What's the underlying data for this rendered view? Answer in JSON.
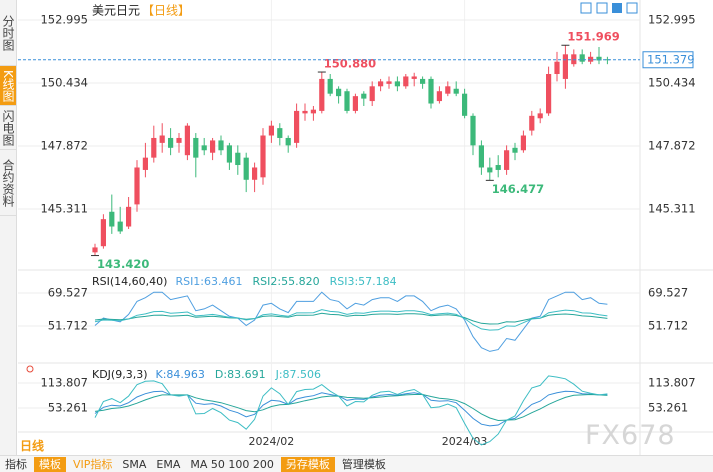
{
  "sidebar": [
    "分时图",
    "K线图",
    "闪电图",
    "合约资料"
  ],
  "period_label": "日线",
  "toolbar": [
    "指标",
    "模板",
    "VIP指标",
    "SMA",
    "EMA",
    "MA 50 100 200",
    "另存模板",
    "管理模板"
  ],
  "watermark": "FX678",
  "chart_data": [
    {
      "type": "candlestick",
      "title": "美元日元",
      "subtitle": "【日线】",
      "categories": [
        null,
        null,
        null,
        null,
        null,
        null,
        null,
        null,
        null,
        null,
        null,
        null,
        null,
        null,
        null,
        null,
        null,
        null,
        null,
        null,
        null,
        "2024/02",
        null,
        null,
        null,
        null,
        null,
        null,
        null,
        null,
        null,
        null,
        null,
        null,
        null,
        null,
        null,
        null,
        null,
        null,
        null,
        null,
        null,
        null,
        "2024/03",
        null,
        null,
        null,
        null,
        null,
        null,
        null,
        null,
        null,
        null,
        null,
        null,
        null,
        null,
        null,
        null,
        null
      ],
      "open": [
        143.55,
        143.8,
        145.2,
        144.8,
        144.6,
        145.5,
        146.9,
        147.4,
        148.0,
        148.2,
        148.0,
        147.5,
        148.2,
        147.9,
        147.6,
        148.1,
        147.9,
        147.6,
        147.4,
        146.5,
        146.6,
        148.3,
        148.6,
        148.2,
        148.0,
        149.2,
        149.2,
        149.3,
        150.6,
        150.2,
        150.1,
        149.3,
        150.0,
        149.7,
        150.3,
        150.4,
        150.5,
        150.3,
        150.6,
        150.6,
        150.6,
        149.7,
        150.0,
        150.2,
        150.0,
        149.1,
        147.9,
        147.0,
        147.1,
        146.9,
        147.8,
        147.7,
        148.5,
        149.0,
        149.2,
        150.8,
        150.6,
        151.2,
        151.6,
        151.3,
        151.5,
        151.4
      ],
      "high": [
        143.9,
        145.1,
        145.9,
        145.4,
        145.8,
        147.3,
        148.0,
        148.7,
        148.8,
        148.6,
        148.4,
        148.8,
        148.4,
        148.2,
        148.2,
        148.3,
        148.0,
        147.9,
        147.6,
        147.2,
        148.6,
        148.9,
        148.8,
        148.3,
        149.6,
        149.6,
        149.5,
        150.88,
        150.8,
        150.3,
        150.2,
        150.0,
        150.1,
        150.5,
        150.6,
        150.7,
        150.7,
        150.8,
        150.85,
        150.7,
        150.7,
        150.3,
        150.5,
        150.5,
        150.2,
        149.2,
        148.1,
        147.4,
        147.5,
        147.9,
        148.0,
        148.5,
        149.3,
        149.4,
        151.1,
        151.7,
        151.969,
        151.8,
        151.8,
        151.7,
        151.9,
        151.5
      ],
      "low": [
        143.42,
        143.7,
        144.3,
        144.3,
        144.5,
        145.2,
        146.6,
        147.2,
        147.6,
        147.5,
        147.6,
        147.3,
        146.6,
        147.5,
        147.3,
        147.5,
        146.9,
        146.7,
        146.0,
        146.0,
        146.3,
        148.0,
        147.9,
        147.6,
        147.8,
        148.9,
        148.9,
        149.2,
        149.9,
        149.6,
        149.2,
        149.2,
        149.5,
        149.5,
        150.1,
        150.2,
        150.1,
        150.2,
        150.3,
        150.2,
        149.4,
        149.6,
        149.9,
        149.9,
        149.0,
        147.5,
        146.7,
        146.477,
        146.6,
        146.7,
        147.3,
        147.6,
        148.3,
        148.8,
        149.1,
        150.5,
        150.2,
        151.1,
        151.2,
        151.2,
        151.2,
        151.2
      ],
      "close": [
        143.75,
        144.9,
        144.6,
        144.4,
        145.4,
        147.0,
        147.4,
        148.2,
        148.3,
        147.8,
        148.2,
        148.7,
        147.4,
        147.7,
        148.1,
        147.7,
        147.2,
        147.1,
        146.5,
        147.0,
        148.3,
        148.7,
        148.2,
        147.9,
        149.3,
        149.3,
        149.35,
        150.6,
        150.0,
        149.9,
        149.3,
        149.9,
        149.8,
        150.3,
        150.5,
        150.5,
        150.3,
        150.7,
        150.7,
        150.4,
        149.6,
        150.1,
        150.3,
        150.0,
        149.1,
        147.9,
        147.0,
        146.8,
        146.9,
        147.7,
        147.6,
        148.3,
        149.1,
        149.2,
        150.8,
        151.3,
        151.6,
        151.6,
        151.3,
        151.5,
        151.35,
        151.379
      ],
      "up_color": "#ef4f5f",
      "down_color": "#3cb97a",
      "ylim": [
        142.914,
        153.605
      ],
      "yticks": [
        152.995,
        150.434,
        147.872,
        145.311
      ],
      "grid": true,
      "annotations": [
        {
          "value": 150.88,
          "label": "150.880"
        },
        {
          "value": 151.969,
          "label": "151.969"
        },
        {
          "value": 146.477,
          "label": "146.477"
        },
        {
          "value": 143.42,
          "label": "143.420"
        }
      ]
    },
    {
      "type": "line",
      "title": "RSI(14,60,40)",
      "series": [
        {
          "name": "RSI1:63.461",
          "color": "#4f9fe0",
          "values": [
            52,
            56,
            55,
            54,
            58,
            65,
            67,
            70,
            70,
            66,
            67,
            68,
            60,
            61,
            63,
            60,
            57,
            56,
            52,
            55,
            63,
            64,
            61,
            59,
            65,
            65,
            65,
            70,
            66,
            65,
            61,
            64,
            63,
            66,
            67,
            67,
            65,
            68,
            68,
            65,
            60,
            62,
            63,
            61,
            55,
            46,
            40,
            38,
            39,
            45,
            44,
            50,
            56,
            57,
            66,
            68,
            70,
            70,
            66,
            67,
            64,
            63.461
          ]
        },
        {
          "name": "RSI2:55.820",
          "color": "#26a69a",
          "values": [
            55,
            55.5,
            55.3,
            55.1,
            55.6,
            56.5,
            56.9,
            57.5,
            57.6,
            57.1,
            57.3,
            57.5,
            56.5,
            56.7,
            57,
            56.6,
            56.1,
            56,
            55.4,
            55.8,
            56.9,
            57.2,
            56.8,
            56.5,
            57.5,
            57.5,
            57.6,
            58.6,
            58,
            57.8,
            57,
            57.5,
            57.4,
            58,
            58.2,
            58.2,
            58,
            58.4,
            58.4,
            58.1,
            57.3,
            57.6,
            57.8,
            57.4,
            56.3,
            54.5,
            53.2,
            52.8,
            52.9,
            54,
            53.9,
            54.8,
            55.8,
            56,
            57.5,
            58,
            58.2,
            57.9,
            57.2,
            56.9,
            56.4,
            55.82
          ]
        },
        {
          "name": "RSI3:57.184",
          "color": "#3dbdc4",
          "values": [
            54,
            55,
            54.8,
            54.6,
            55.5,
            57.5,
            58.3,
            59.5,
            59.6,
            58.6,
            58.9,
            59.3,
            57.2,
            57.5,
            58,
            57.3,
            56.4,
            56.1,
            55,
            55.7,
            57.8,
            58.3,
            57.5,
            57,
            58.8,
            58.8,
            58.9,
            60.6,
            59.6,
            59.3,
            58,
            58.8,
            58.6,
            59.4,
            59.8,
            59.8,
            59.4,
            60,
            60,
            59.3,
            57.9,
            58.4,
            58.7,
            58,
            55.8,
            52.5,
            50.2,
            49.5,
            49.7,
            51.8,
            51.6,
            53.5,
            55.5,
            55.9,
            58.9,
            59.6,
            60.3,
            60,
            58.8,
            58.7,
            57.8,
            57.184
          ]
        }
      ],
      "ylim": [
        32.3,
        80.9
      ],
      "yticks": [
        69.527,
        51.712
      ]
    },
    {
      "type": "line",
      "title": "KDJ(9,3,3)",
      "series": [
        {
          "name": "K:84.963",
          "color": "#3a8fd9",
          "values": [
            40,
            55,
            60,
            58,
            66,
            80,
            88,
            93,
            94,
            85,
            84,
            85,
            65,
            62,
            64,
            58,
            48,
            42,
            32,
            38,
            60,
            72,
            70,
            62,
            75,
            80,
            83,
            90,
            86,
            82,
            72,
            75,
            74,
            80,
            84,
            86,
            84,
            88,
            90,
            86,
            72,
            70,
            71,
            66,
            48,
            28,
            14,
            10,
            12,
            24,
            28,
            45,
            62,
            70,
            85,
            90,
            94,
            93,
            88,
            87,
            85,
            84.963
          ]
        },
        {
          "name": "D:83.691",
          "color": "#26a69a",
          "values": [
            45,
            48,
            52,
            54,
            58,
            65,
            73,
            80,
            85,
            85,
            85,
            85,
            78,
            73,
            70,
            66,
            60,
            54,
            47,
            44,
            49,
            57,
            61,
            62,
            66,
            71,
            75,
            80,
            82,
            82,
            79,
            78,
            77,
            78,
            80,
            82,
            83,
            85,
            86,
            86,
            81,
            77,
            75,
            72,
            64,
            52,
            39,
            29,
            23,
            24,
            25,
            32,
            42,
            51,
            62,
            71,
            79,
            84,
            85,
            86,
            85,
            83.691
          ]
        },
        {
          "name": "J:87.506",
          "color": "#3dbdc4",
          "values": [
            30,
            69,
            76,
            66,
            82,
            110,
            118,
            119,
            112,
            85,
            82,
            85,
            39,
            40,
            52,
            42,
            24,
            18,
            2,
            26,
            82,
            102,
            88,
            62,
            93,
            98,
            99,
            110,
            94,
            82,
            58,
            69,
            68,
            84,
            92,
            94,
            86,
            94,
            98,
            86,
            54,
            56,
            63,
            54,
            16,
            -20,
            -36,
            -28,
            -10,
            24,
            34,
            71,
            102,
            108,
            131,
            128,
            124,
            111,
            94,
            89,
            85,
            87.506
          ]
        }
      ],
      "ylim": [
        -43.6,
        157.4
      ],
      "yticks": [
        113.807,
        53.261
      ]
    }
  ]
}
